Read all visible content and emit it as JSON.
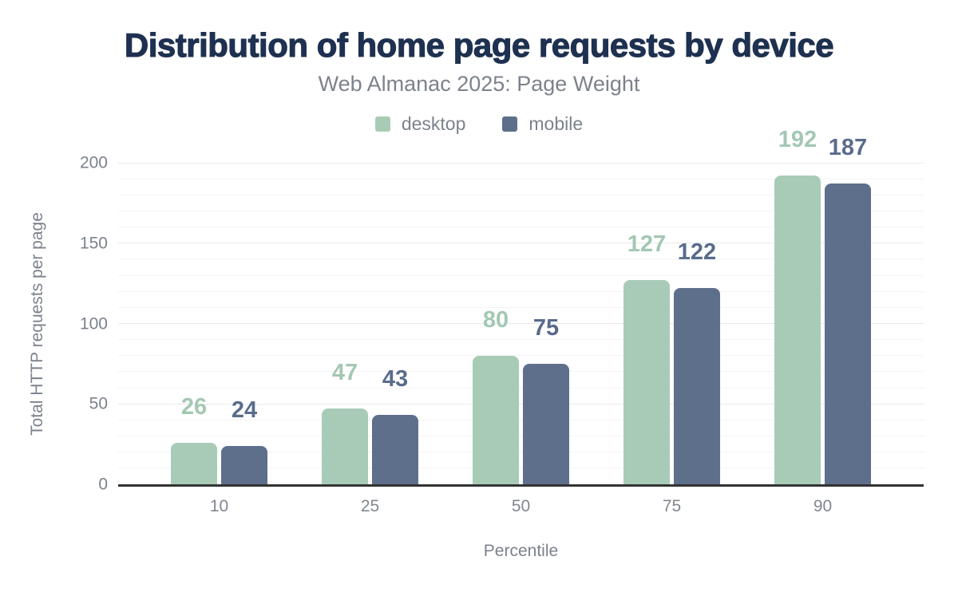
{
  "header": {
    "title": "Distribution of home page requests by device",
    "subtitle": "Web Almanac 2025: Page Weight"
  },
  "legend": {
    "position": "top",
    "items": [
      {
        "label": "desktop",
        "color": "#a8cbb8"
      },
      {
        "label": "mobile",
        "color": "#5d6f8b"
      }
    ]
  },
  "chart_data": {
    "type": "bar",
    "title": "Distribution of home page requests by device",
    "subtitle": "Web Almanac 2025: Page Weight",
    "categories": [
      "10",
      "25",
      "50",
      "75",
      "90"
    ],
    "series": [
      {
        "name": "desktop",
        "color": "#a8cbb8",
        "label_color": "#a3c8b2",
        "values": [
          26,
          47,
          80,
          127,
          192
        ]
      },
      {
        "name": "mobile",
        "color": "#5d6f8b",
        "label_color": "#5a6c8c",
        "values": [
          24,
          43,
          75,
          122,
          187
        ]
      }
    ],
    "xlabel": "Percentile",
    "ylabel": "Total HTTP requests per page",
    "ylim": [
      0,
      200
    ],
    "yticks": [
      0,
      50,
      100,
      150,
      200
    ],
    "minor_gridline_step": 10,
    "grid": "horizontal, minor + major, no vertical lines",
    "legend_position": "top center",
    "bar_value_labels": "above each bar, colored like its series"
  },
  "colors": {
    "title_text": "#1e3150",
    "muted_text": "#7c828c",
    "tick_text": "#81878f",
    "axis_line": "#333333",
    "major_gridline": "#e9e9eb",
    "minor_gridline": "#f4f4f6",
    "background": "#ffffff"
  }
}
